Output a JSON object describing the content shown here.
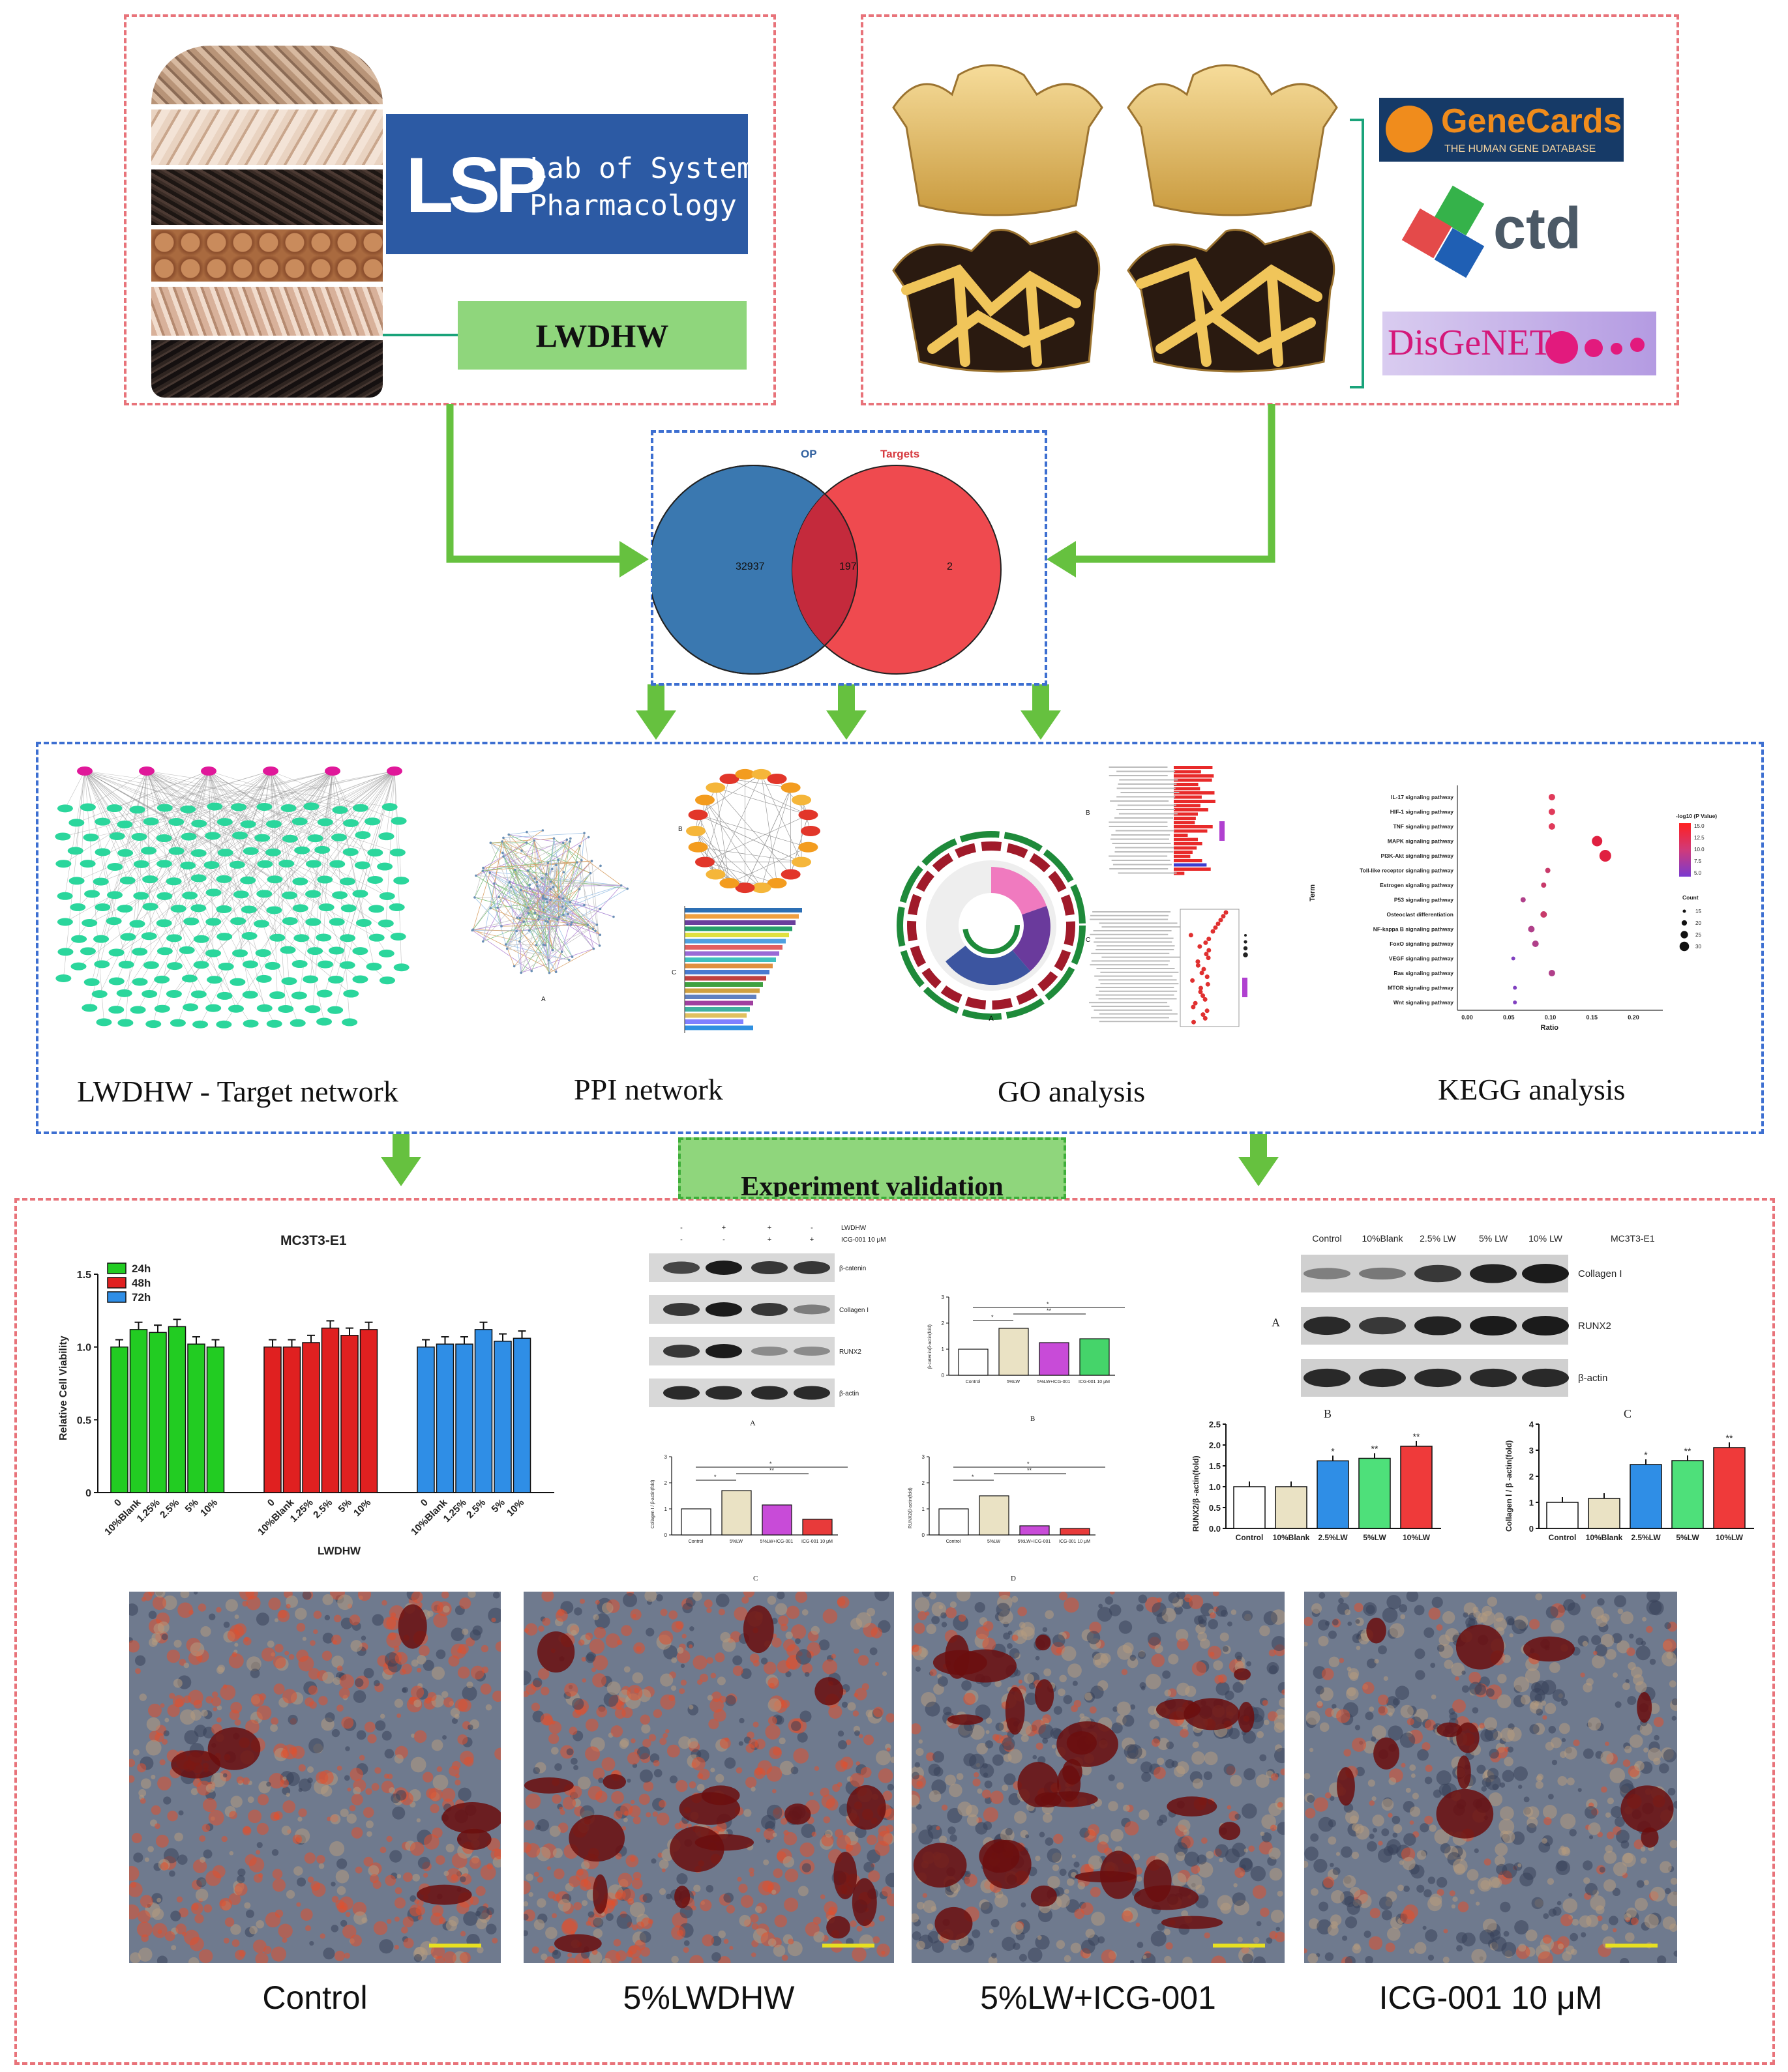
{
  "lsp_logo": {
    "mark": "LSP",
    "line1": "Lab of Systems",
    "line2": "Pharmacology"
  },
  "lwdhw_box": {
    "label": "LWDHW"
  },
  "databases": {
    "genecards": "GeneCards",
    "genecards_sub": "THE HUMAN GENE DATABASE",
    "ctd": "ctd",
    "disgenet": "DisGeNET"
  },
  "venn": {
    "left_title": "OP",
    "right_title": "Targets",
    "left_only": "32937",
    "overlap": "197",
    "right_only": "2",
    "colors": {
      "left": "#3a78b0",
      "right": "#ef4a4f",
      "overlap": "#c42a3c"
    }
  },
  "panel_labels": {
    "network": "LWDHW - Target network",
    "ppi": "PPI network",
    "go": "GO analysis",
    "kegg": "KEGG analysis"
  },
  "experiment": {
    "label": "Experiment validation"
  },
  "kegg_plot": {
    "terms": [
      "IL-17 signaling pathway",
      "HIF-1 signaling pathway",
      "TNF signaling pathway",
      "MAPK signaling pathway",
      "PI3K-Akt signaling pathway",
      "Toll-like receptor signaling pathway",
      "Estrogen signaling pathway",
      "P53 signaling pathway",
      "Osteoclast differentiation",
      "NF-kappa B signaling pathway",
      "FoxO signaling pathway",
      "VEGF signaling pathway",
      "Ras signaling pathway",
      "MTOR signaling pathway",
      "Wnt signaling pathway"
    ],
    "ylabel": "Term",
    "xlabel": "Ratio",
    "xticks": [
      "0.00",
      "0.05",
      "0.10",
      "0.15",
      "0.20"
    ],
    "color_legend_title": "-log10 (P Value)",
    "color_ticks": [
      "15.0",
      "12.5",
      "10.0",
      "7.5",
      "5.0"
    ],
    "size_legend_title": "Count",
    "size_ticks": [
      "15",
      "20",
      "25",
      "30"
    ]
  },
  "cell_viability": {
    "title": "MC3T3-E1",
    "ylabel": "Relative Cell Viability",
    "xlabel": "LWDHW",
    "yticks": [
      "0",
      "0.5",
      "1.0",
      "1.5"
    ],
    "legend": [
      "24h",
      "48h",
      "72h"
    ],
    "series_colors": [
      "#22cc22",
      "#e02020",
      "#2f8ee6"
    ],
    "categories": [
      "0",
      "10%Blank",
      "1.25%",
      "2.5%",
      "5%",
      "10%"
    ]
  },
  "western1": {
    "header_rows": [
      [
        "-",
        "+",
        "+",
        "-"
      ],
      [
        "-",
        "-",
        "+",
        "+"
      ]
    ],
    "header_labels": [
      "LWDHW",
      "ICG-001 10 μM"
    ],
    "bands": [
      "β-catenin",
      "Collagen I",
      "RUNX2",
      "β-actin"
    ],
    "panel_a": "A"
  },
  "bar_b": {
    "categories": [
      "Control",
      "5%LW",
      "5%LW+ICG-001",
      "ICG-001 10 μM"
    ],
    "ylabel": "β-catenin/β-actin(fold)",
    "panel": "B"
  },
  "bar_c": {
    "categories": [
      "Control",
      "5%LW",
      "5%LW+ICG-001",
      "ICG-001 10 μM"
    ],
    "ylabel": "Collagen I / β-actin(fold)",
    "panel": "C"
  },
  "bar_d": {
    "categories": [
      "Control",
      "5%LW",
      "5%LW+ICG-001",
      "ICG-001 10 μM"
    ],
    "ylabel": "RUNX2/β-actin(fold)",
    "panel": "D"
  },
  "western2": {
    "lanes": [
      "Control",
      "10%Blank",
      "2.5% LW",
      "5% LW",
      "10% LW"
    ],
    "cell": "MC3T3-E1",
    "bands": [
      "Collagen I",
      "RUNX2",
      "β-actin"
    ],
    "panel_a": "A"
  },
  "bar_runx2": {
    "categories": [
      "Control",
      "10%Blank",
      "2.5%LW",
      "5%LW",
      "10%LW"
    ],
    "ylabel": "RUNX2/β -actin(fold)",
    "yticks": [
      "0.0",
      "0.5",
      "1.0",
      "1.5",
      "2.0",
      "2.5"
    ],
    "panel": "B"
  },
  "bar_col": {
    "categories": [
      "Control",
      "10%Blank",
      "2.5%LW",
      "5%LW",
      "10%LW"
    ],
    "ylabel": "Collagen Ⅰ / β -actin(fold)",
    "yticks": [
      "0",
      "1",
      "2",
      "3",
      "4"
    ],
    "panel": "C"
  },
  "photos": [
    "Control",
    "5%LWDHW",
    "5%LW+ICG-001",
    "ICG-001 10 μM"
  ],
  "chart_data": [
    {
      "type": "bar",
      "title": "MC3T3-E1",
      "xlabel": "LWDHW",
      "ylabel": "Relative Cell Viability",
      "categories": [
        "0",
        "10%Blank",
        "1.25%",
        "2.5%",
        "5%",
        "10%"
      ],
      "ylim": [
        0,
        1.5
      ],
      "series": [
        {
          "name": "24h",
          "values": [
            1.0,
            1.12,
            1.1,
            1.14,
            1.02,
            1.0
          ]
        },
        {
          "name": "48h",
          "values": [
            1.0,
            1.0,
            1.03,
            1.13,
            1.08,
            1.12
          ]
        },
        {
          "name": "72h",
          "values": [
            1.0,
            1.02,
            1.02,
            1.12,
            1.04,
            1.06
          ]
        }
      ]
    },
    {
      "type": "bar",
      "categories": [
        "Control",
        "5%LW",
        "5%LW+ICG-001",
        "ICG-001 10 μM"
      ],
      "values": [
        1.0,
        1.8,
        1.25,
        1.4
      ],
      "ylim": [
        0,
        3
      ]
    },
    {
      "type": "bar",
      "categories": [
        "Control",
        "5%LW",
        "5%LW+ICG-001",
        "ICG-001 10 μM"
      ],
      "values": [
        1.0,
        1.7,
        1.15,
        0.6
      ],
      "ylim": [
        0,
        3
      ]
    },
    {
      "type": "bar",
      "categories": [
        "Control",
        "5%LW",
        "5%LW+ICG-001",
        "ICG-001 10 μM"
      ],
      "values": [
        1.0,
        1.5,
        0.35,
        0.25
      ],
      "ylim": [
        0,
        3
      ]
    },
    {
      "type": "bar",
      "ylabel": "RUNX2/β -actin(fold)",
      "categories": [
        "Control",
        "10%Blank",
        "2.5%LW",
        "5%LW",
        "10%LW"
      ],
      "values": [
        1.0,
        1.0,
        1.62,
        1.68,
        1.97
      ],
      "ylim": [
        0,
        2.5
      ]
    },
    {
      "type": "bar",
      "ylabel": "Collagen Ⅰ / β -actin(fold)",
      "categories": [
        "Control",
        "10%Blank",
        "2.5%LW",
        "5%LW",
        "10%LW"
      ],
      "values": [
        1.0,
        1.15,
        2.45,
        2.6,
        3.1
      ],
      "ylim": [
        0,
        4
      ]
    }
  ]
}
